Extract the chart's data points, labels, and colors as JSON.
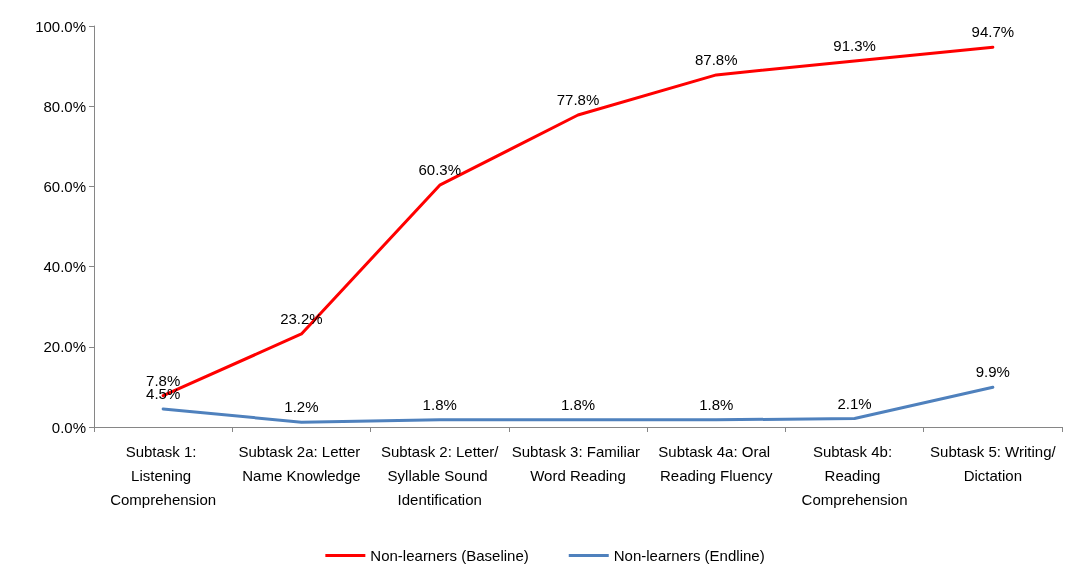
{
  "chart_data": {
    "type": "line",
    "categories": [
      "Subtask 1: Listening Comprehension",
      "Subtask 2a: Letter Name Knowledge",
      "Subtask 2: Letter/Syllable Sound Identification",
      "Subtask 3: Familiar Word Reading",
      "Subtask 4a: Oral Reading Fluency",
      "Subtask 4b: Reading Comprehension",
      "Subtask 5: Writing/Dictation"
    ],
    "series": [
      {
        "name": "Non-learners (Baseline)",
        "color": "#ff0000",
        "values": [
          7.8,
          23.2,
          60.3,
          77.8,
          87.8,
          91.3,
          94.7
        ],
        "value_labels": [
          "7.8%",
          "23.2%",
          "60.3%",
          "77.8%",
          "87.8%",
          "91.3%",
          "94.7%"
        ]
      },
      {
        "name": "Non-learners (Endline)",
        "color": "#4f81bd",
        "values": [
          4.5,
          1.2,
          1.8,
          1.8,
          1.8,
          2.1,
          9.9
        ],
        "value_labels": [
          "4.5%",
          "1.2%",
          "1.8%",
          "1.8%",
          "1.8%",
          "2.1%",
          "9.9%"
        ]
      }
    ],
    "ylim": [
      0,
      100
    ],
    "yticks": [
      {
        "value": 0,
        "label": "0.0%"
      },
      {
        "value": 20,
        "label": "20.0%"
      },
      {
        "value": 40,
        "label": "40.0%"
      },
      {
        "value": 60,
        "label": "60.0%"
      },
      {
        "value": 80,
        "label": "80.0%"
      },
      {
        "value": 100,
        "label": "100.0%"
      }
    ],
    "grid": false,
    "legend": "bottom",
    "marker": "none",
    "line_style": "solid"
  }
}
